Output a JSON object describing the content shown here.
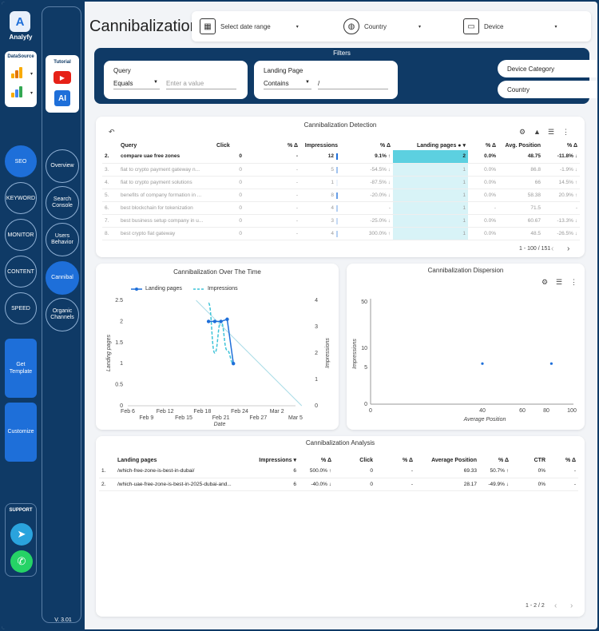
{
  "app": {
    "name": "Analyfy",
    "version": "V. 3.01"
  },
  "sidebar": {
    "datasource_label": "DataSource",
    "tutorial_label": "Tutorial",
    "primary": [
      {
        "label": "SEO",
        "active": true
      },
      {
        "label": "KEYWORD",
        "active": false
      },
      {
        "label": "MONITOR",
        "active": false
      },
      {
        "label": "CONTENT",
        "active": false
      },
      {
        "label": "SPEED",
        "active": false
      }
    ],
    "get_template": "Get Template",
    "customize": "Customize",
    "support_label": "SUPPORT",
    "secondary": [
      {
        "label": "Overview",
        "active": false
      },
      {
        "label": "Search Console",
        "active": false
      },
      {
        "label": "Users Behavior",
        "active": false
      },
      {
        "label": "Cannibal",
        "active": true
      },
      {
        "label": "Organic Channels",
        "active": false
      }
    ]
  },
  "header": {
    "title": "Cannibalization",
    "date_range": "Select date range",
    "country": "Country",
    "device": "Device"
  },
  "filters": {
    "title": "Filters",
    "query_label": "Query",
    "query_op": "Equals",
    "query_placeholder": "Enter a value",
    "lp_label": "Landing Page",
    "lp_op": "Contains",
    "lp_value": "/",
    "device_category": "Device Category",
    "country": "Country"
  },
  "detection": {
    "title": "Cannibalization Detection",
    "headers": [
      "Query",
      "Click",
      "% Δ",
      "Impressions",
      "% Δ",
      "Landing pages",
      "% Δ",
      "Avg. Position",
      "% Δ"
    ],
    "rows": [
      {
        "n": "2.",
        "query": "compare uae free zones",
        "click": "0",
        "click_d": "-",
        "imp": "12",
        "imp_d": "9.1% ↑",
        "lp": "2",
        "lp_d": "0.0%",
        "pos": "48.75",
        "pos_d": "-11.8% ↓",
        "imp_frac": 1.0,
        "lp_frac": 1.0
      },
      {
        "n": "3.",
        "query": "fiat to crypto payment gateway n...",
        "click": "0",
        "click_d": "-",
        "imp": "5",
        "imp_d": "-54.5% ↓",
        "lp": "1",
        "lp_d": "0.0%",
        "pos": "86.8",
        "pos_d": "-1.9% ↓",
        "imp_frac": 0.42,
        "lp_frac": 0.5
      },
      {
        "n": "4.",
        "query": "fiat to crypto payment solutions",
        "click": "0",
        "click_d": "-",
        "imp": "1",
        "imp_d": "-87.5% ↓",
        "lp": "1",
        "lp_d": "0.0%",
        "pos": "66",
        "pos_d": "14.5% ↑",
        "imp_frac": 0.08,
        "lp_frac": 0.5
      },
      {
        "n": "5.",
        "query": "benefits of company formation in ...",
        "click": "0",
        "click_d": "-",
        "imp": "8",
        "imp_d": "-20.0% ↓",
        "lp": "1",
        "lp_d": "0.0%",
        "pos": "58.38",
        "pos_d": "20.9% ↑",
        "imp_frac": 0.67,
        "lp_frac": 0.5
      },
      {
        "n": "6.",
        "query": "best blockchain for tokenization",
        "click": "0",
        "click_d": "-",
        "imp": "4",
        "imp_d": "-",
        "lp": "1",
        "lp_d": "-",
        "pos": "71.5",
        "pos_d": "-",
        "imp_frac": 0.33,
        "lp_frac": 0.5
      },
      {
        "n": "7.",
        "query": "best business setup company in u...",
        "click": "0",
        "click_d": "-",
        "imp": "3",
        "imp_d": "-25.0% ↓",
        "lp": "1",
        "lp_d": "0.0%",
        "pos": "60.67",
        "pos_d": "-13.3% ↓",
        "imp_frac": 0.25,
        "lp_frac": 0.5
      },
      {
        "n": "8.",
        "query": "best crypto fiat gateway",
        "click": "0",
        "click_d": "-",
        "imp": "4",
        "imp_d": "300.0% ↑",
        "lp": "1",
        "lp_d": "0.0%",
        "pos": "48.5",
        "pos_d": "-26.5% ↓",
        "imp_frac": 0.33,
        "lp_frac": 0.5
      }
    ],
    "pager": "1 - 100 / 151"
  },
  "over_time": {
    "title": "Cannibalization Over The Time",
    "legend": [
      "Landing pages",
      "Impressions"
    ],
    "chart_data": {
      "type": "line",
      "xlabel": "Date",
      "ylabel_left": "Landing pages",
      "ylabel_right": "Impressions",
      "x_ticks_top": [
        "Feb 6",
        "Feb 12",
        "Feb 18",
        "Feb 24",
        "Mar 2"
      ],
      "x_ticks_bottom": [
        "Feb 9",
        "Feb 15",
        "Feb 21",
        "Feb 27",
        "Mar 5"
      ],
      "y_left_ticks": [
        "2.5",
        "2",
        "1.5",
        "1",
        "0.5",
        "0"
      ],
      "y_right_ticks": [
        "4",
        "3",
        "2",
        "1",
        "0"
      ],
      "y_left_range": [
        0,
        2.5
      ],
      "y_right_range": [
        0,
        4
      ],
      "x_range_days": [
        "2025-02-06",
        "2025-03-05"
      ],
      "series": [
        {
          "name": "Landing pages",
          "axis": "left",
          "x": [
            "Feb 19",
            "Feb 20",
            "Feb 21",
            "Feb 22",
            "Feb 23"
          ],
          "y": [
            2,
            2,
            2,
            2.05,
            1
          ]
        },
        {
          "name": "Impressions",
          "axis": "right",
          "x": [
            "Feb 19",
            "Feb 20",
            "Feb 21",
            "Feb 22",
            "Feb 23"
          ],
          "y": [
            3.9,
            2.0,
            3.2,
            2.1,
            1.6
          ]
        }
      ]
    }
  },
  "dispersion": {
    "title": "Cannibalization Dispersion",
    "chart_data": {
      "type": "scatter",
      "xlabel": "Average Position",
      "ylabel": "Impressions",
      "x_ticks": [
        "0",
        "40",
        "60",
        "80",
        "100"
      ],
      "y_ticks": [
        "50",
        "10",
        "5",
        "0"
      ],
      "points": [
        {
          "x": 40,
          "y": 6
        },
        {
          "x": 84,
          "y": 6
        }
      ]
    }
  },
  "analysis": {
    "title": "Cannibalization Analysis",
    "headers": [
      "Landing pages",
      "Impressions",
      "% Δ",
      "Click",
      "% Δ",
      "Average Position",
      "% Δ",
      "CTR",
      "% Δ"
    ],
    "rows": [
      {
        "n": "1.",
        "page": "/which-free-zone-is-best-in-dubai/",
        "imp": "6",
        "imp_d": "500.0% ↑",
        "click": "0",
        "click_d": "-",
        "pos": "69.33",
        "pos_d": "50.7% ↑",
        "ctr": "0%",
        "ctr_d": "-"
      },
      {
        "n": "2.",
        "page": "/which-uae-free-zone-is-best-in-2025-dubai-and...",
        "imp": "6",
        "imp_d": "-40.0% ↓",
        "click": "0",
        "click_d": "-",
        "pos": "28.17",
        "pos_d": "-49.9% ↓",
        "ctr": "0%",
        "ctr_d": "-"
      }
    ],
    "pager": "1 - 2 / 2"
  }
}
